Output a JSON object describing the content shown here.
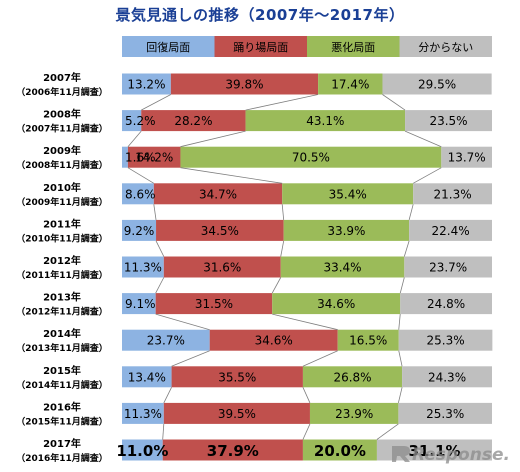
{
  "chart_data": {
    "type": "bar",
    "stacked": true,
    "orientation": "horizontal",
    "title": "景気見通しの推移（2007年～2017年）",
    "legend_position": "top",
    "series": [
      {
        "name": "回復局面",
        "color": "#8db3e2",
        "values": [
          13.2,
          5.2,
          1.6,
          8.6,
          9.2,
          11.3,
          9.1,
          23.7,
          13.4,
          11.3,
          11.0
        ]
      },
      {
        "name": "踊り場局面",
        "color": "#c0504d",
        "values": [
          39.8,
          28.2,
          14.2,
          34.7,
          34.5,
          31.6,
          31.5,
          34.6,
          35.5,
          39.5,
          37.9
        ]
      },
      {
        "name": "悪化局面",
        "color": "#9bbb59",
        "values": [
          17.4,
          43.1,
          70.5,
          35.4,
          33.9,
          33.4,
          34.6,
          16.5,
          26.8,
          23.9,
          20.0
        ]
      },
      {
        "name": "分からない",
        "color": "#bfbfbf",
        "values": [
          29.5,
          23.5,
          13.7,
          21.3,
          22.4,
          23.7,
          24.8,
          25.3,
          24.3,
          25.3,
          31.1
        ]
      }
    ],
    "categories": [
      {
        "year": "2007年",
        "survey": "（2006年11月調査）"
      },
      {
        "year": "2008年",
        "survey": "（2007年11月調査）"
      },
      {
        "year": "2009年",
        "survey": "（2008年11月調査）"
      },
      {
        "year": "2010年",
        "survey": "（2009年11月調査）"
      },
      {
        "year": "2011年",
        "survey": "（2010年11月調査）"
      },
      {
        "year": "2012年",
        "survey": "（2011年11月調査）"
      },
      {
        "year": "2013年",
        "survey": "（2012年11月調査）"
      },
      {
        "year": "2014年",
        "survey": "（2013年11月調査）"
      },
      {
        "year": "2015年",
        "survey": "（2014年11月調査）"
      },
      {
        "year": "2016年",
        "survey": "（2015年11月調査）"
      },
      {
        "year": "2017年",
        "survey": "（2016年11月調査）"
      }
    ],
    "value_suffix": "%",
    "highlighted_category_index": 10
  },
  "watermark": {
    "text": "Response."
  }
}
